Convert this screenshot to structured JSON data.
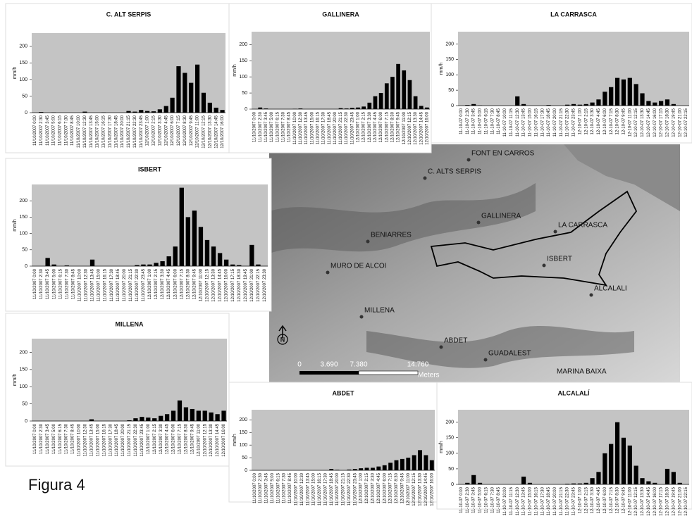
{
  "caption": "Figura 4",
  "map": {
    "places": [
      "FONT EN CARROS",
      "C. ALTS SERPIS",
      "GALLINERA",
      "LA CARRASCA",
      "BENIARRES",
      "ISBERT",
      "MURO DE ALCOI",
      "ALCALALI",
      "MILLENA",
      "ABDET",
      "GUADALEST",
      "MARINA BAIXA"
    ],
    "scale_labels": [
      "0",
      "3.690",
      "7.380",
      "14.760"
    ],
    "scale_unit": "Meters",
    "north": "N"
  },
  "chart_data": [
    {
      "type": "bar",
      "title": "C. ALT SERPIS",
      "ylabel": "mm/h",
      "color": "#000000",
      "ylim": [
        0,
        240
      ],
      "yticks": [
        0,
        50,
        100,
        150,
        200
      ],
      "categories": [
        "11/10/2007 0:00",
        "11/10/2007 2:30",
        "11/10/2007 3:45",
        "11/10/2007 5:00",
        "11/10/2007 6:15",
        "11/10/2007 7:30",
        "11/10/2007 8:45",
        "11/10/2007 10:00",
        "11/10/2007 12:30",
        "11/10/2007 13:45",
        "11/10/2007 15:00",
        "11/10/2007 16:15",
        "11/10/2007 17:30",
        "11/10/2007 18:45",
        "11/10/2007 20:00",
        "11/10/2007 21:15",
        "11/10/2007 22:30",
        "11/10/2007 23:45",
        "12/10/2007 1:00",
        "12/10/2007 2:15",
        "12/10/2007 3:30",
        "12/10/2007 4:45",
        "12/10/2007 6:00",
        "12/10/2007 7:15",
        "12/10/2007 8:30",
        "12/10/2007 9:45",
        "12/10/2007 11:00",
        "12/10/2007 12:15",
        "12/10/2007 13:30",
        "12/10/2007 14:45",
        "12/10/2007 16:00"
      ],
      "values": [
        0,
        2,
        0,
        1,
        0,
        0,
        0,
        0,
        3,
        0,
        0,
        1,
        0,
        0,
        0,
        5,
        3,
        8,
        5,
        4,
        10,
        20,
        45,
        140,
        120,
        90,
        145,
        60,
        30,
        15,
        8
      ]
    },
    {
      "type": "bar",
      "title": "GALLINERA",
      "ylabel": "mm/h",
      "color": "#000000",
      "ylim": [
        0,
        240
      ],
      "yticks": [
        0,
        50,
        100,
        150,
        200
      ],
      "categories": [
        "11/10/2007 0:00",
        "11/10/2007 2:30",
        "11/10/2007 3:45",
        "11/10/2007 5:00",
        "11/10/2007 6:15",
        "11/10/2007 7:30",
        "11/10/2007 8:45",
        "11/10/2007 10:00",
        "11/10/2007 12:30",
        "11/10/2007 13:45",
        "11/10/2007 15:00",
        "11/10/2007 16:15",
        "11/10/2007 17:30",
        "11/10/2007 18:45",
        "11/10/2007 20:00",
        "11/10/2007 21:15",
        "11/10/2007 22:30",
        "11/10/2007 23:45",
        "12/10/2007 1:00",
        "12/10/2007 2:15",
        "12/10/2007 3:30",
        "12/10/2007 4:45",
        "12/10/2007 6:00",
        "12/10/2007 7:15",
        "12/10/2007 8:30",
        "12/10/2007 9:45",
        "12/10/2007 11:00",
        "12/10/2007 12:15",
        "12/10/2007 13:30",
        "12/10/2007 14:45",
        "12/10/2007 16:00"
      ],
      "values": [
        0,
        5,
        2,
        0,
        0,
        0,
        0,
        1,
        2,
        0,
        0,
        0,
        0,
        0,
        0,
        3,
        2,
        4,
        5,
        8,
        20,
        40,
        50,
        80,
        100,
        140,
        120,
        90,
        40,
        10,
        5
      ]
    },
    {
      "type": "bar",
      "title": "LA CARRASCA",
      "ylabel": "mm/h",
      "color": "#000000",
      "ylim": [
        0,
        240
      ],
      "yticks": [
        0,
        50,
        100,
        150,
        200
      ],
      "categories": [
        "11-10-07 0:00",
        "11-10-07 2:30",
        "11-10-07 3:45",
        "11-10-07 5:00",
        "11-10-07 6:15",
        "11-10-07 7:30",
        "11-10-07 8:45",
        "11-10-07 10:00",
        "11-10-07 11:15",
        "11-10-07 12:30",
        "11-10-07 13:45",
        "11-10-07 15:00",
        "11-10-07 16:15",
        "11-10-07 17:30",
        "11-10-07 18:45",
        "11-10-07 20:00",
        "11-10-07 21:15",
        "11-10-07 22:30",
        "11-10-07 23:45",
        "12-10-07 1:00",
        "12-10-07 2:15",
        "12-10-07 3:30",
        "12-10-07 4:45",
        "12-10-07 6:00",
        "12-10-07 7:15",
        "12-10-07 8:30",
        "12-10-07 9:45",
        "12-10-07 11:00",
        "12-10-07 12:15",
        "12-10-07 13:30",
        "12-10-07 14:45",
        "12-10-07 16:00",
        "12-10-07 17:15",
        "12-10-07 18:30",
        "12-10-07 19:45",
        "12-10-07 21:00",
        "12-10-07 22:15"
      ],
      "values": [
        0,
        2,
        5,
        1,
        0,
        0,
        0,
        0,
        0,
        30,
        5,
        0,
        0,
        0,
        2,
        0,
        0,
        3,
        5,
        3,
        5,
        10,
        20,
        45,
        60,
        90,
        85,
        90,
        70,
        40,
        15,
        10,
        15,
        20,
        5,
        0,
        0
      ]
    },
    {
      "type": "bar",
      "title": "ISBERT",
      "ylabel": "mm/h",
      "color": "#000000",
      "ylim": [
        0,
        250
      ],
      "yticks": [
        0,
        50,
        100,
        150,
        200
      ],
      "categories": [
        "11/10/2007 0:00",
        "11/10/2007 2:30",
        "11/10/2007 3:45",
        "11/10/2007 5:00",
        "11/10/2007 6:15",
        "11/10/2007 7:30",
        "11/10/2007 8:45",
        "11/10/2007 10:00",
        "11/10/2007 12:30",
        "11/10/2007 13:45",
        "11/10/2007 15:00",
        "11/10/2007 16:15",
        "11/10/2007 17:30",
        "11/10/2007 18:45",
        "11/10/2007 20:00",
        "11/10/2007 21:15",
        "11/10/2007 22:30",
        "11/10/2007 23:45",
        "12/10/2007 1:00",
        "12/10/2007 2:15",
        "12/10/2007 3:30",
        "12/10/2007 4:45",
        "12/10/2007 6:00",
        "12/10/2007 7:15",
        "12/10/2007 8:30",
        "12/10/2007 9:45",
        "12/10/2007 11:00",
        "12/10/2007 12:15",
        "12/10/2007 13:30",
        "12/10/2007 14:45",
        "12/10/2007 16:00",
        "12/10/2007 17:15",
        "12/10/2007 18:30",
        "12/10/2007 19:45",
        "12/10/2007 21:00",
        "12/10/2007 22:15",
        "12/10/2007 23:30"
      ],
      "values": [
        0,
        0,
        25,
        5,
        0,
        2,
        0,
        0,
        0,
        20,
        0,
        0,
        0,
        0,
        0,
        0,
        3,
        5,
        5,
        10,
        15,
        30,
        60,
        240,
        150,
        170,
        120,
        80,
        60,
        40,
        20,
        5,
        3,
        0,
        65,
        5,
        0
      ]
    },
    {
      "type": "bar",
      "title": "MILLENA",
      "ylabel": "mm/h",
      "color": "#000000",
      "ylim": [
        0,
        240
      ],
      "yticks": [
        0,
        50,
        100,
        150,
        200
      ],
      "categories": [
        "11/10/2007 0:00",
        "11/10/2007 2:30",
        "11/10/2007 3:45",
        "11/10/2007 5:00",
        "11/10/2007 6:15",
        "11/10/2007 7:30",
        "11/10/2007 8:45",
        "11/10/2007 10:00",
        "11/10/2007 12:30",
        "11/10/2007 13:45",
        "11/10/2007 15:00",
        "11/10/2007 16:15",
        "11/10/2007 17:30",
        "11/10/2007 18:45",
        "11/10/2007 20:00",
        "11/10/2007 21:15",
        "11/10/2007 22:30",
        "11/10/2007 23:45",
        "12/10/2007 1:00",
        "12/10/2007 2:15",
        "12/10/2007 3:30",
        "12/10/2007 4:45",
        "12/10/2007 6:00",
        "12/10/2007 7:15",
        "12/10/2007 8:30",
        "12/10/2007 9:45",
        "12/10/2007 11:00",
        "12/10/2007 12:15",
        "12/10/2007 13:30",
        "12/10/2007 14:45",
        "12/10/2007 16:00"
      ],
      "values": [
        0,
        0,
        0,
        0,
        0,
        0,
        0,
        0,
        0,
        5,
        0,
        0,
        0,
        0,
        0,
        2,
        8,
        12,
        10,
        8,
        15,
        20,
        30,
        60,
        40,
        35,
        30,
        30,
        25,
        20,
        30
      ]
    },
    {
      "type": "bar",
      "title": "ABDET",
      "ylabel": "mm/h",
      "color": "#000000",
      "ylim": [
        0,
        240
      ],
      "yticks": [
        0,
        50,
        100,
        150,
        200
      ],
      "categories": [
        "11/10/2007 0:00",
        "11/10/2007 2:30",
        "11/10/2007 3:45",
        "11/10/2007 5:00",
        "11/10/2007 6:15",
        "11/10/2007 7:30",
        "11/10/2007 8:45",
        "11/10/2007 10:00",
        "11/10/2007 12:30",
        "11/10/2007 13:45",
        "11/10/2007 15:00",
        "11/10/2007 16:15",
        "11/10/2007 17:30",
        "11/10/2007 18:45",
        "11/10/2007 20:00",
        "11/10/2007 21:15",
        "11/10/2007 22:30",
        "11/10/2007 23:45",
        "12/10/2007 1:00",
        "12/10/2007 2:15",
        "12/10/2007 3:30",
        "12/10/2007 4:45",
        "12/10/2007 6:00",
        "12/10/2007 7:15",
        "12/10/2007 8:30",
        "12/10/2007 9:45",
        "12/10/2007 11:00",
        "12/10/2007 12:15",
        "12/10/2007 13:30",
        "12/10/2007 14:45",
        "12/10/2007 16:00"
      ],
      "values": [
        0,
        0,
        0,
        0,
        0,
        0,
        0,
        0,
        0,
        0,
        0,
        0,
        0,
        5,
        2,
        0,
        3,
        5,
        8,
        10,
        10,
        15,
        20,
        30,
        40,
        45,
        50,
        60,
        80,
        60,
        40
      ]
    },
    {
      "type": "bar",
      "title": "ALCALALÍ",
      "ylabel": "mm/h",
      "color": "#000000",
      "ylim": [
        0,
        240
      ],
      "yticks": [
        0,
        50,
        100,
        150,
        200
      ],
      "categories": [
        "11-10-07 0:00",
        "11-10-07 2:30",
        "11-10-07 3:45",
        "11-10-07 5:00",
        "11-10-07 6:15",
        "11-10-07 7:30",
        "11-10-07 8:45",
        "11-10-07 10:00",
        "11-10-07 11:15",
        "11-10-07 12:30",
        "11-10-07 13:45",
        "11-10-07 15:00",
        "11-10-07 16:15",
        "11-10-07 17:30",
        "11-10-07 18:45",
        "11-10-07 20:00",
        "11-10-07 21:15",
        "11-10-07 22:30",
        "11-10-07 23:45",
        "12-10-07 1:00",
        "12-10-07 2:15",
        "12-10-07 3:30",
        "12-10-07 4:45",
        "12-10-07 6:00",
        "12-10-07 7:15",
        "12-10-07 8:30",
        "12-10-07 9:45",
        "12-10-07 11:00",
        "12-10-07 12:15",
        "12-10-07 13:30",
        "12-10-07 14:45",
        "12-10-07 16:00",
        "12-10-07 17:15",
        "12-10-07 18:30",
        "12-10-07 19:45",
        "12-10-07 21:00",
        "12-10-07 22:15"
      ],
      "values": [
        0,
        5,
        30,
        5,
        0,
        0,
        0,
        0,
        0,
        0,
        25,
        5,
        0,
        0,
        0,
        0,
        0,
        2,
        3,
        3,
        5,
        20,
        40,
        100,
        130,
        200,
        150,
        125,
        60,
        20,
        10,
        5,
        0,
        50,
        40,
        5,
        0
      ]
    }
  ]
}
